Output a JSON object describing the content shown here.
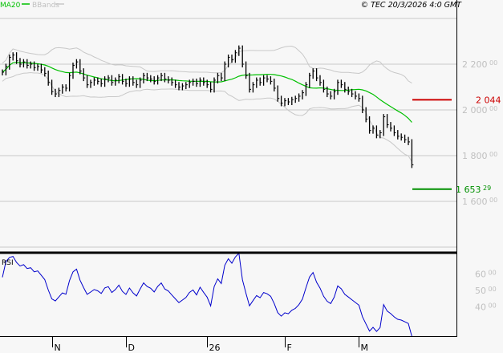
{
  "legend": {
    "ma_label": "MA20",
    "bb_label": "BBands",
    "copyright": "© TEC 20/3/2026 4:0 GMT"
  },
  "colors": {
    "background": "#f7f7f7",
    "bars": "#000000",
    "ma": "#00c000",
    "bbands": "#c8c8c8",
    "rsi": "#0000cc",
    "resistance": "#cc0000",
    "support": "#009000",
    "axis_text": "#c0c0c0"
  },
  "chart_data": [
    {
      "type": "ohlc-bar",
      "indicators": [
        "MA20",
        "BBands"
      ],
      "ylim": [
        1400,
        2400
      ],
      "y_ticks": [
        {
          "value": 2200,
          "main": "2 200",
          "dec": "00"
        },
        {
          "value": 2000,
          "main": "2 000",
          "dec": "00"
        },
        {
          "value": 1800,
          "main": "1 800",
          "dec": "00"
        },
        {
          "value": 1600,
          "main": "1 600",
          "dec": "00"
        }
      ],
      "x_ticks": [
        {
          "index": 14,
          "label": "N"
        },
        {
          "index": 35,
          "label": "D"
        },
        {
          "index": 58,
          "label": "26"
        },
        {
          "index": 80,
          "label": "F"
        },
        {
          "index": 101,
          "label": "M"
        }
      ],
      "levels": [
        {
          "value": 2044.1,
          "label": "2 044 1",
          "dec": "",
          "color": "#cc0000"
        },
        {
          "value": 1653.29,
          "label": "1 653",
          "dec": "29",
          "color": "#009000"
        }
      ],
      "grid": true,
      "close": [
        2165,
        2190,
        2230,
        2240,
        2215,
        2200,
        2210,
        2195,
        2200,
        2185,
        2190,
        2175,
        2160,
        2120,
        2080,
        2070,
        2085,
        2100,
        2095,
        2150,
        2195,
        2210,
        2170,
        2140,
        2110,
        2120,
        2130,
        2125,
        2115,
        2135,
        2140,
        2120,
        2130,
        2145,
        2125,
        2115,
        2135,
        2120,
        2110,
        2130,
        2150,
        2140,
        2135,
        2125,
        2140,
        2150,
        2135,
        2130,
        2120,
        2110,
        2100,
        2105,
        2110,
        2120,
        2125,
        2115,
        2130,
        2120,
        2110,
        2090,
        2130,
        2150,
        2140,
        2200,
        2230,
        2220,
        2250,
        2270,
        2200,
        2150,
        2090,
        2110,
        2130,
        2120,
        2140,
        2135,
        2125,
        2095,
        2050,
        2030,
        2040,
        2035,
        2045,
        2050,
        2060,
        2075,
        2110,
        2150,
        2170,
        2140,
        2120,
        2090,
        2070,
        2060,
        2080,
        2120,
        2110,
        2090,
        2080,
        2070,
        2060,
        2050,
        2000,
        1960,
        1910,
        1920,
        1890,
        1900,
        1970,
        1935,
        1920,
        1900,
        1885,
        1880,
        1870,
        1860,
        1760
      ]
    },
    {
      "type": "line",
      "title": "RSI",
      "ylim": [
        20,
        80
      ],
      "y_ticks": [
        {
          "value": 60,
          "main": "60",
          "dec": "00"
        },
        {
          "value": 50,
          "main": "50",
          "dec": "00"
        },
        {
          "value": 40,
          "main": "40",
          "dec": "00"
        }
      ]
    }
  ]
}
